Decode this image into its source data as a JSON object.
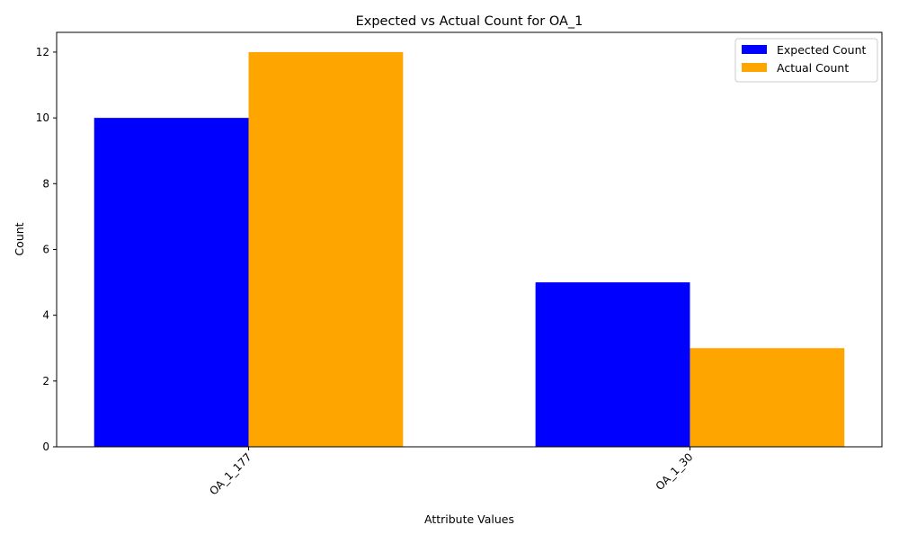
{
  "chart_data": {
    "type": "bar",
    "title": "Expected vs Actual Count for OA_1",
    "xlabel": "Attribute Values",
    "ylabel": "Count",
    "categories": [
      "OA_1_177",
      "OA_1_30"
    ],
    "series": [
      {
        "name": "Expected Count",
        "values": [
          10,
          5
        ],
        "color": "#0000ff"
      },
      {
        "name": "Actual Count",
        "values": [
          12,
          3
        ],
        "color": "#ffa500"
      }
    ],
    "ylim": [
      0,
      12.6
    ],
    "yticks": [
      0,
      2,
      4,
      6,
      8,
      10,
      12
    ],
    "grid": false,
    "legend_position": "top-right",
    "xtick_rotation": 45
  }
}
